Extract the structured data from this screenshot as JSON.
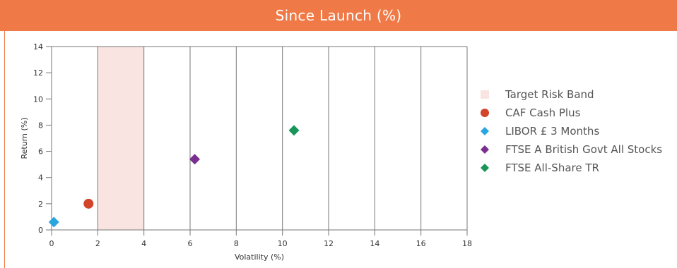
{
  "title": "Since Launch (%)",
  "colors": {
    "header": "#f07a47",
    "band": "#f9e4e1",
    "caf": "#d2452b",
    "libor": "#2aa6df",
    "ftse_govt": "#7a2f8e",
    "ftse_all": "#19955a"
  },
  "chart_data": {
    "type": "scatter",
    "xlabel": "Volatility (%)",
    "ylabel": "Return (%)",
    "xlim": [
      0,
      18
    ],
    "ylim": [
      0,
      14
    ],
    "x_ticks": [
      "0",
      "2",
      "4",
      "6",
      "8",
      "10",
      "12",
      "14",
      "16",
      "18"
    ],
    "y_ticks": [
      "0",
      "2",
      "4",
      "6",
      "8",
      "10",
      "12",
      "14"
    ],
    "grid": "vertical",
    "legend_position": "right",
    "band": {
      "name": "Target Risk Band",
      "x_range": [
        2,
        4
      ]
    },
    "series": [
      {
        "name": "CAF Cash Plus",
        "marker": "circle",
        "color": "#d2452b",
        "points": [
          {
            "x": 1.6,
            "y": 2.0
          }
        ]
      },
      {
        "name": "LIBOR £ 3 Months",
        "marker": "diamond",
        "color": "#2aa6df",
        "points": [
          {
            "x": 0.1,
            "y": 0.6
          }
        ]
      },
      {
        "name": "FTSE A British Govt All Stocks",
        "marker": "diamond",
        "color": "#7a2f8e",
        "points": [
          {
            "x": 6.2,
            "y": 5.4
          }
        ]
      },
      {
        "name": "FTSE All-Share TR",
        "marker": "diamond",
        "color": "#19955a",
        "points": [
          {
            "x": 10.5,
            "y": 7.6
          }
        ]
      }
    ]
  }
}
